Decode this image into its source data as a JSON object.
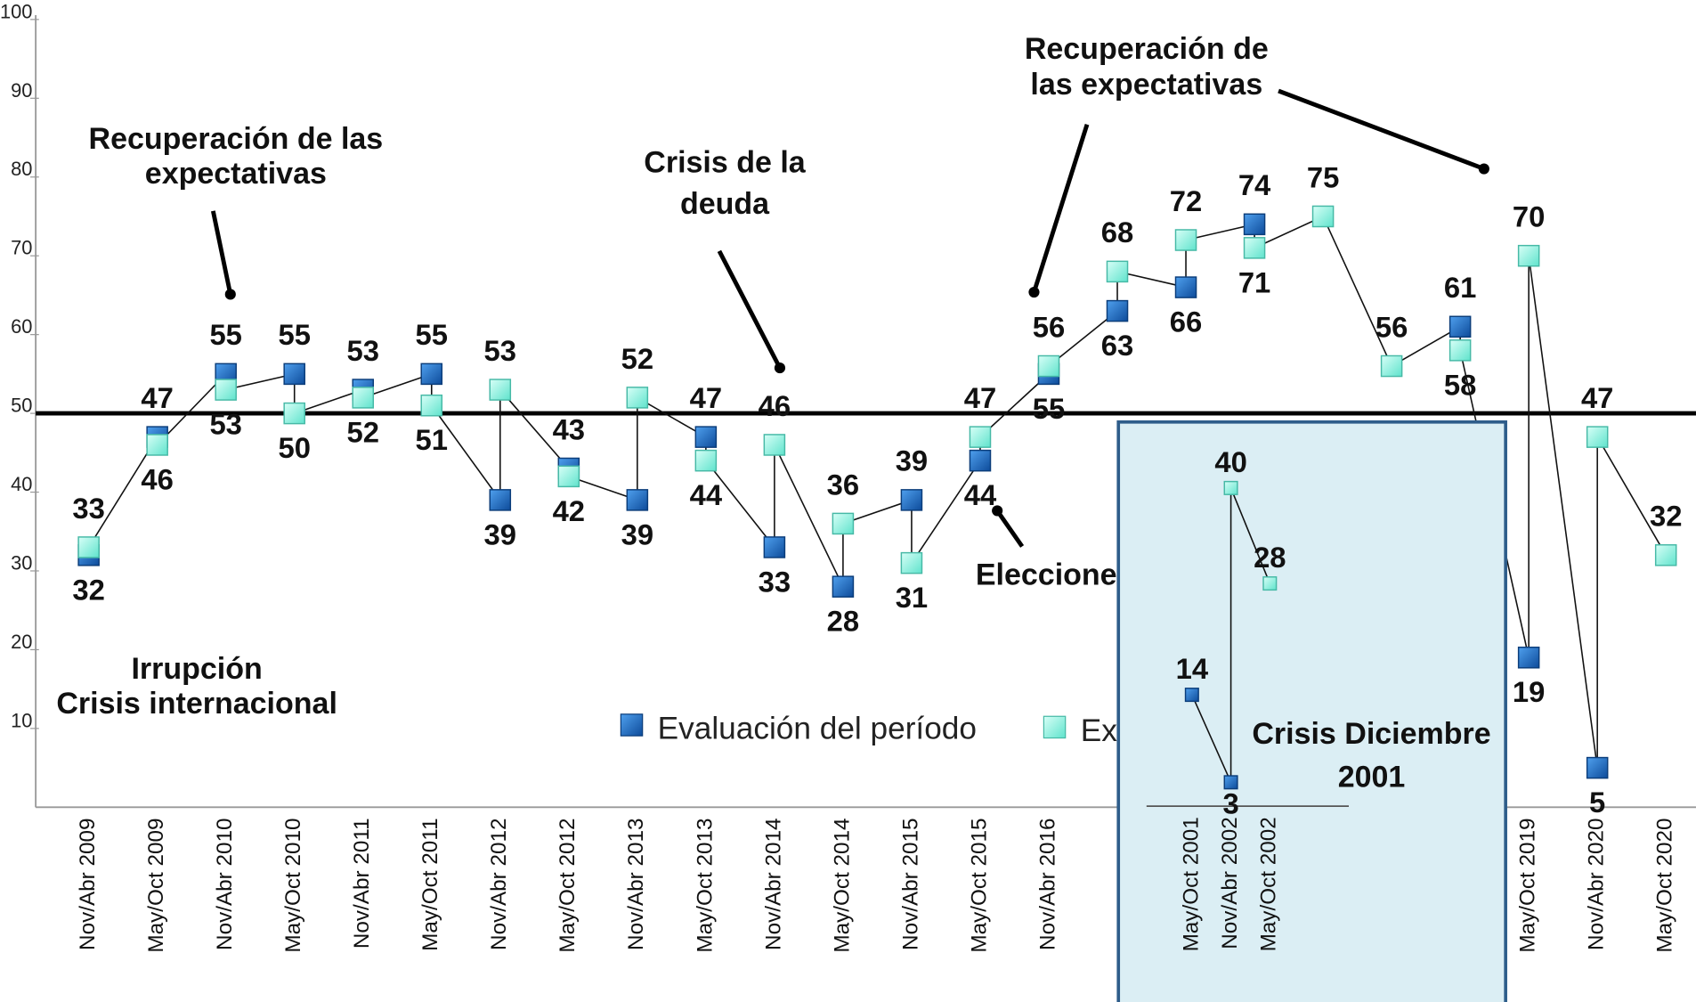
{
  "chart_data": [
    {
      "type": "line",
      "categories": [
        "Nov/Abr 2009",
        "May/Oct 2009",
        "Nov/Abr 2010",
        "May/Oct 2010",
        "Nov/Abr 2011",
        "May/Oct 2011",
        "Nov/Abr 2012",
        "May/Oct 2012",
        "Nov/Abr 2013",
        "May/Oct 2013",
        "Nov/Abr 2014",
        "May/Oct 2014",
        "Nov/Abr 2015",
        "May/Oct 2015",
        "Nov/Abr 2016",
        null,
        null,
        null,
        null,
        null,
        null,
        "May/Oct 2019",
        "Nov/Abr 2020",
        "May/Oct 2020"
      ],
      "series": [
        {
          "name": "Evaluación del período",
          "color": "#1f6fc5",
          "values": [
            32,
            47,
            55,
            55,
            53,
            55,
            39,
            43,
            39,
            47,
            33,
            28,
            39,
            44,
            55,
            63,
            66,
            74,
            null,
            null,
            61,
            19,
            5,
            null
          ]
        },
        {
          "name": "Expectativas",
          "color": "#7ff3dc",
          "values": [
            33,
            46,
            53,
            50,
            52,
            51,
            53,
            42,
            52,
            44,
            46,
            36,
            31,
            47,
            56,
            68,
            72,
            71,
            75,
            56,
            58,
            70,
            47,
            32
          ]
        }
      ],
      "ylim": [
        0,
        100
      ],
      "yticks": [
        10,
        20,
        30,
        40,
        50,
        60,
        70,
        80,
        90,
        100
      ],
      "reference_line": 50,
      "annotations": [
        {
          "lines": [
            "Recuperación de las",
            "expectativas"
          ]
        },
        {
          "lines": [
            "Crisis de la",
            "deuda"
          ]
        },
        {
          "lines": [
            "Recuperación de",
            "las expectativas"
          ]
        },
        {
          "lines": [
            "Elecciones"
          ]
        },
        {
          "lines": [
            "Irrupción",
            "Crisis internacional"
          ]
        }
      ]
    },
    {
      "type": "line",
      "title_lines": [
        "Crisis Diciembre",
        "2001"
      ],
      "categories": [
        "May/Oct 2001",
        "Nov/Abr 2002",
        "May/Oct 2002"
      ],
      "series": [
        {
          "color": "#1f6fc5",
          "values": [
            14,
            3,
            null
          ]
        },
        {
          "color": "#7ff3dc",
          "values": [
            null,
            40,
            28
          ]
        }
      ],
      "ylim": [
        0,
        40
      ]
    }
  ]
}
